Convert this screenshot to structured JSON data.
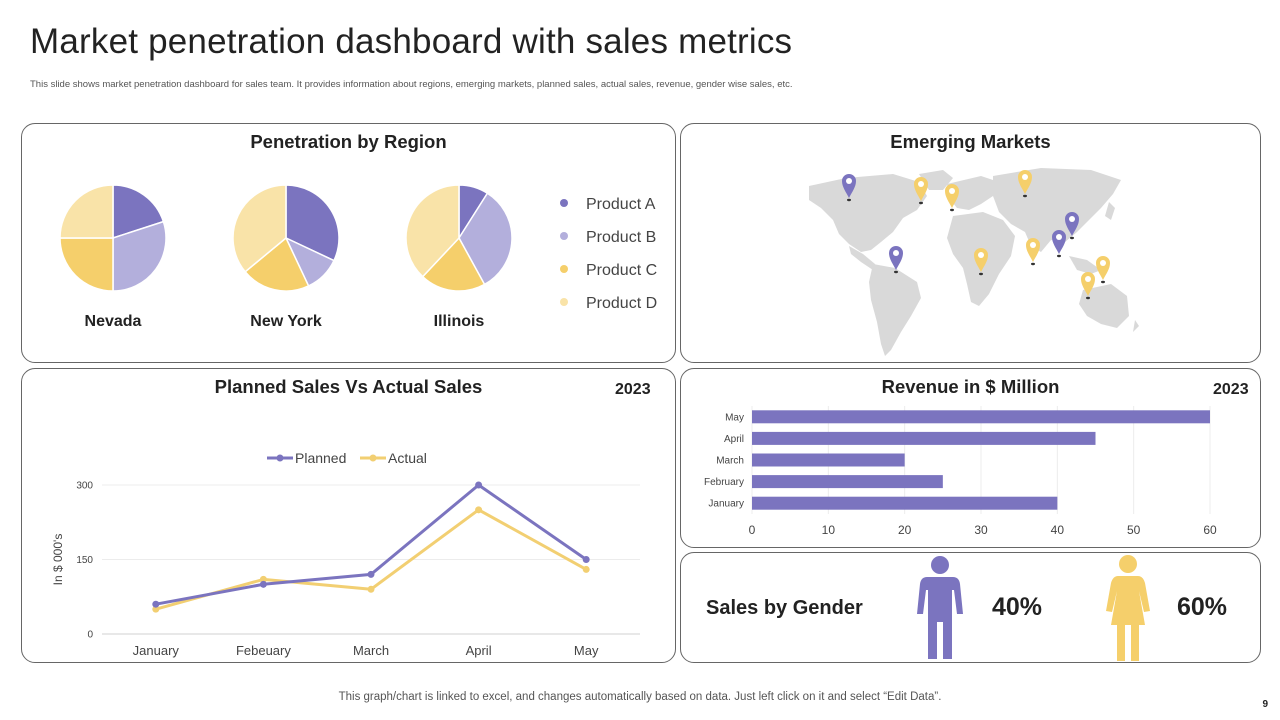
{
  "header": {
    "title": "Market penetration dashboard with sales metrics",
    "subtitle": "This slide shows market penetration dashboard for sales team. It provides information about regions, emerging markets, planned sales, actual sales, revenue, gender wise sales, etc."
  },
  "colors": {
    "product_a": "#7b74bf",
    "product_b": "#b3afdc",
    "product_c": "#f5cf6b",
    "product_d": "#f9e3a8",
    "planned": "#7b74bf",
    "actual": "#f2cf72",
    "bar": "#7b74bf",
    "male": "#7b74bf",
    "female": "#f5cf6b",
    "map_land": "#d9d9d9",
    "pin_purple": "#7b74bf",
    "pin_yellow": "#f5cf6b"
  },
  "penetration": {
    "title": "Penetration by Region",
    "legend": [
      "Product A",
      "Product B",
      "Product C",
      "Product D"
    ]
  },
  "emerging": {
    "title": "Emerging Markets"
  },
  "line_panel": {
    "title": "Planned Sales Vs Actual Sales",
    "year": "2023"
  },
  "revenue_panel": {
    "title": "Revenue in $ Million",
    "year": "2023"
  },
  "gender": {
    "label": "Sales by Gender",
    "male_pct": "40%",
    "female_pct": "60%",
    "male_value": 40,
    "female_value": 60
  },
  "footer": {
    "note": "This graph/chart is linked to excel, and changes automatically based on data. Just left click on it and select “Edit Data”.",
    "page": "9"
  },
  "chart_data": [
    {
      "type": "pie",
      "id": "pies",
      "title": "Penetration by Region",
      "series_names": [
        "Product A",
        "Product B",
        "Product C",
        "Product D"
      ],
      "pies": [
        {
          "name": "Nevada",
          "values": [
            20,
            30,
            25,
            25
          ]
        },
        {
          "name": "New York",
          "values": [
            32,
            11,
            21,
            36
          ]
        },
        {
          "name": "Illinois",
          "values": [
            9,
            33,
            20,
            38
          ]
        }
      ]
    },
    {
      "type": "line",
      "id": "sales",
      "title": "Planned Sales Vs Actual Sales",
      "categories": [
        "January",
        "Febeuary",
        "March",
        "April",
        "May"
      ],
      "series": [
        {
          "name": "Planned",
          "values": [
            60,
            100,
            120,
            300,
            150
          ]
        },
        {
          "name": "Actual",
          "values": [
            50,
            110,
            90,
            250,
            130
          ]
        }
      ],
      "ylabel": "In $ 000's",
      "ylim": [
        0,
        300
      ],
      "yticks": [
        0,
        150,
        300
      ],
      "legend": "top"
    },
    {
      "type": "bar",
      "orientation": "horizontal",
      "id": "revenue",
      "title": "Revenue in $ Million",
      "categories": [
        "January",
        "February",
        "March",
        "April",
        "May"
      ],
      "values": [
        40,
        25,
        20,
        45,
        60
      ],
      "xlim": [
        0,
        60
      ],
      "xticks": [
        0,
        10,
        20,
        30,
        40,
        50,
        60
      ]
    }
  ]
}
